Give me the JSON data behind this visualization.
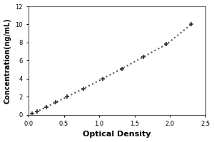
{
  "title": "",
  "xlabel": "Optical Density",
  "ylabel": "Concentration(ng/mL)",
  "xlim": [
    0,
    2.5
  ],
  "ylim": [
    0,
    12
  ],
  "xticks": [
    0,
    0.5,
    1.0,
    1.5,
    2.0,
    2.5
  ],
  "yticks": [
    0,
    2,
    4,
    6,
    8,
    10,
    12
  ],
  "x_data": [
    0.05,
    0.12,
    0.25,
    0.38,
    0.55,
    0.78,
    1.05,
    1.32,
    1.62,
    1.95,
    2.3
  ],
  "y_data": [
    0.1,
    0.35,
    0.85,
    1.35,
    2.0,
    2.9,
    4.0,
    5.1,
    6.4,
    7.8,
    10.0
  ],
  "line_color": "#555555",
  "marker": "+",
  "marker_size": 5,
  "marker_color": "#333333",
  "marker_linewidth": 1.2,
  "linestyle": "dotted",
  "linewidth": 1.5,
  "bg_color": "#ffffff",
  "xlabel_fontsize": 8,
  "ylabel_fontsize": 7,
  "tick_fontsize": 6,
  "figsize": [
    3.0,
    2.0
  ],
  "dpi": 100
}
